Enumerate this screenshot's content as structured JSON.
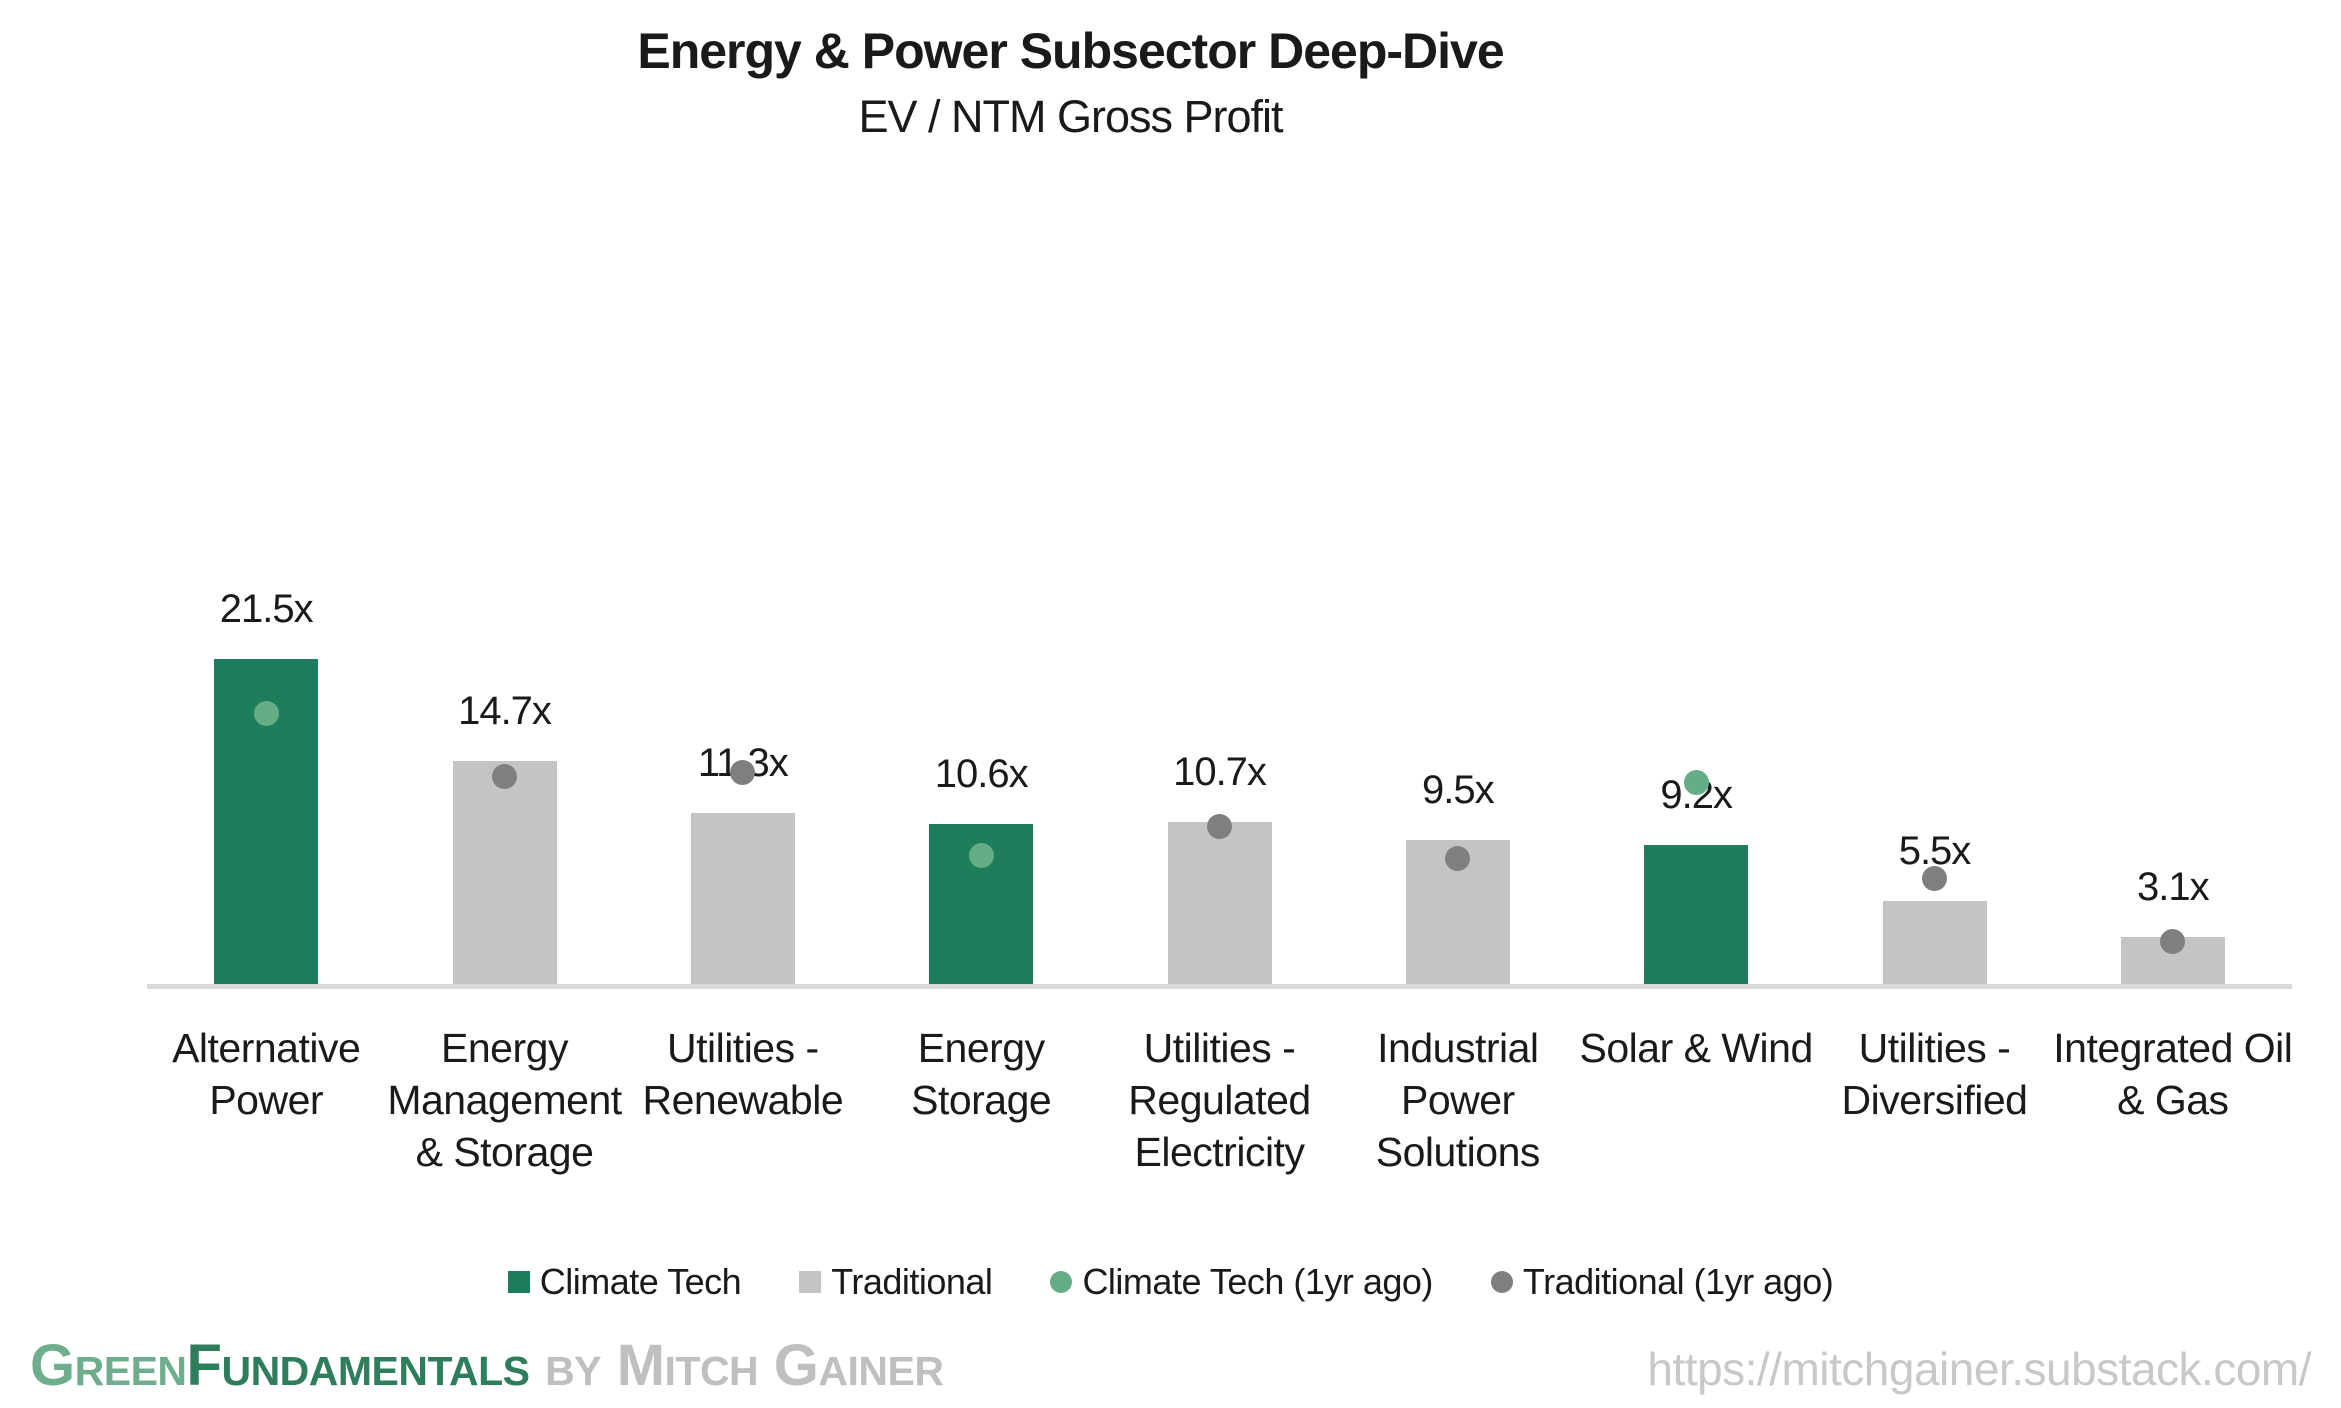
{
  "header": {
    "title": "Energy & Power Subsector Deep-Dive",
    "subtitle": "EV / NTM Gross Profit"
  },
  "chart_data": {
    "type": "bar",
    "title": "Energy & Power Subsector Deep-Dive",
    "subtitle": "EV / NTM Gross Profit",
    "xlabel": "",
    "ylabel": "",
    "ylim": [
      0,
      65
    ],
    "grid": false,
    "legend_position": "bottom",
    "value_suffix": "x",
    "categories": [
      "Alternative Power",
      "Energy Management & Storage",
      "Utilities - Renewable",
      "Energy Storage",
      "Utilities - Regulated Electricity",
      "Industrial Power Solutions",
      "Solar & Wind",
      "Utilities - Diversified",
      "Integrated Oil & Gas"
    ],
    "category_lines": [
      [
        "Alternative",
        "Power"
      ],
      [
        "Energy",
        "Management",
        "& Storage"
      ],
      [
        "Utilities -",
        "Renewable"
      ],
      [
        "Energy",
        "Storage"
      ],
      [
        "Utilities -",
        "Regulated",
        "Electricity"
      ],
      [
        "Industrial",
        "Power",
        "Solutions"
      ],
      [
        "Solar & Wind"
      ],
      [
        "Utilities -",
        "Diversified"
      ],
      [
        "Integrated Oil",
        "& Gas"
      ]
    ],
    "bar_labels": [
      "21.5x",
      "14.7x",
      "11.3x",
      "10.6x",
      "10.7x",
      "9.5x",
      "9.2x",
      "5.5x",
      "3.1x"
    ],
    "series": [
      {
        "name": "Climate Tech",
        "marker": "square",
        "color": "#1E7E5C",
        "values": [
          21.5,
          null,
          null,
          10.6,
          null,
          null,
          9.2,
          null,
          null
        ]
      },
      {
        "name": "Traditional",
        "marker": "square",
        "color": "#C4C4C4",
        "values": [
          null,
          14.7,
          11.3,
          null,
          10.7,
          9.5,
          null,
          5.5,
          3.1
        ]
      },
      {
        "name": "Climate Tech (1yr ago)",
        "marker": "circle",
        "color": "#65AE85",
        "values": [
          17.9,
          null,
          null,
          8.5,
          null,
          null,
          13.3,
          null,
          null
        ]
      },
      {
        "name": "Traditional (1yr ago)",
        "marker": "circle",
        "color": "#7F7F7F",
        "values": [
          null,
          13.7,
          14.0,
          null,
          10.4,
          8.3,
          null,
          7.0,
          2.8
        ]
      }
    ]
  },
  "footer": {
    "brand_green": "Green",
    "brand_dark": "Fundamentals",
    "brand_by": " by Mitch Gainer",
    "url": "https://mitchgainer.substack.com/"
  },
  "colors": {
    "axis_line": "#D9D9D9",
    "text": "#1A1A1A",
    "brand_light_green": "#6FAE8C",
    "brand_dark_green": "#2E7D5B",
    "brand_gray": "#BFBFBF",
    "url_gray": "#C8C8C8"
  }
}
